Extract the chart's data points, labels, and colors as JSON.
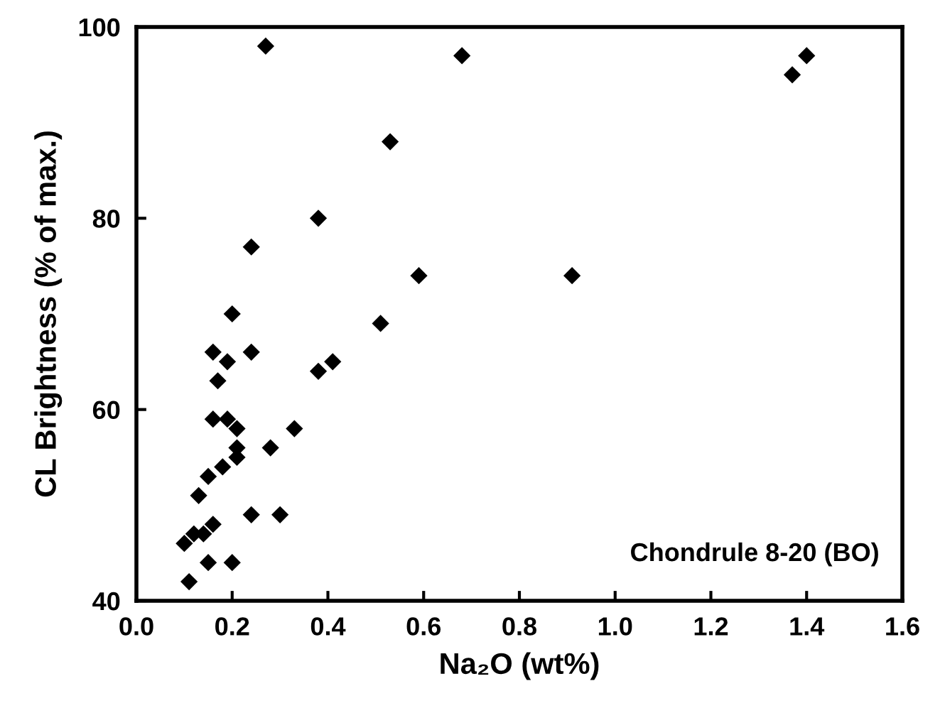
{
  "chart_data": {
    "type": "scatter",
    "xlabel": "Na₂O (wt%)",
    "ylabel": "CL Brightness (% of max.)",
    "annotations": [
      "Chondrule 8-20 (BO)"
    ],
    "x": [
      0.27,
      0.68,
      1.37,
      1.4,
      0.53,
      0.38,
      0.24,
      0.59,
      0.91,
      0.2,
      0.51,
      0.16,
      0.24,
      0.19,
      0.41,
      0.38,
      0.17,
      0.16,
      0.19,
      0.21,
      0.33,
      0.21,
      0.28,
      0.2,
      0.18,
      0.21,
      0.15,
      0.13,
      0.24,
      0.3,
      0.15,
      0.14,
      0.16,
      0.12,
      0.1,
      0.15,
      0.2,
      0.11
    ],
    "series": [
      {
        "color": "#000000",
        "values": [
          98,
          97,
          95,
          97,
          88,
          80,
          77,
          74,
          74,
          70,
          69,
          66,
          66,
          65,
          65,
          64,
          63,
          59,
          59,
          58,
          58,
          56,
          56,
          null,
          54,
          55,
          53,
          51,
          49,
          49,
          null,
          47,
          48,
          47,
          46,
          44,
          44,
          42
        ]
      }
    ],
    "xlim": [
      0,
      1.6
    ],
    "xticks": [
      {
        "value": 0,
        "label": "0.0"
      },
      {
        "value": 0.2,
        "label": "0.2"
      },
      {
        "value": 0.4,
        "label": "0.4"
      },
      {
        "value": 0.6,
        "label": "0.6"
      },
      {
        "value": 0.8,
        "label": "0.8"
      },
      {
        "value": 1.0,
        "label": "1.0"
      },
      {
        "value": 1.2,
        "label": "1.2"
      },
      {
        "value": 1.4,
        "label": "1.4"
      },
      {
        "value": 1.6,
        "label": "1.6"
      }
    ],
    "ylim": [
      40,
      100
    ],
    "yticks": [
      40,
      60,
      80,
      100
    ],
    "marker": "diamond",
    "grid": false,
    "legend": false
  }
}
